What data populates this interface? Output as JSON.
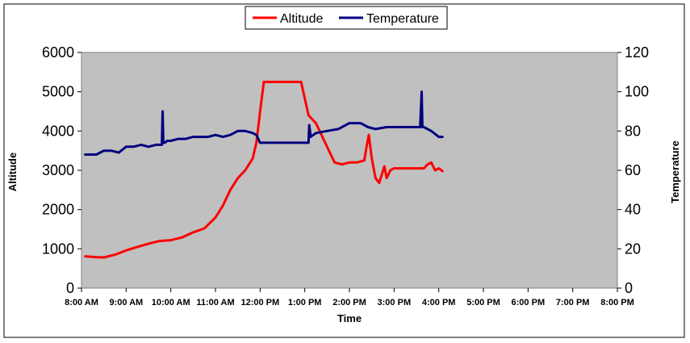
{
  "chart_data": {
    "type": "line",
    "title": "",
    "xlabel": "Time",
    "ylabel": "Altitude",
    "y2label": "Temperature",
    "xlim": [
      "8:00 AM",
      "8:00 PM"
    ],
    "ylim": [
      0,
      6000
    ],
    "y2lim": [
      0,
      120
    ],
    "x_ticks": [
      "8:00 AM",
      "9:00 AM",
      "10:00 AM",
      "11:00 AM",
      "12:00 PM",
      "1:00 PM",
      "2:00 PM",
      "3:00 PM",
      "4:00 PM",
      "5:00 PM",
      "6:00 PM",
      "7:00 PM",
      "8:00 PM"
    ],
    "y_ticks": [
      0,
      1000,
      2000,
      3000,
      4000,
      5000,
      6000
    ],
    "y2_ticks": [
      0,
      20,
      40,
      60,
      80,
      100,
      120
    ],
    "grid": false,
    "plot_background": "#c0c0c0",
    "legend_position": "top-center",
    "series": [
      {
        "name": "Altitude",
        "axis": "left",
        "color": "#ff0000",
        "x": [
          "8:05 AM",
          "8:20 AM",
          "8:30 AM",
          "8:45 AM",
          "9:00 AM",
          "9:15 AM",
          "9:30 AM",
          "9:45 AM",
          "10:00 AM",
          "10:15 AM",
          "10:30 AM",
          "10:45 AM",
          "11:00 AM",
          "11:10 AM",
          "11:20 AM",
          "11:30 AM",
          "11:40 AM",
          "11:50 AM",
          "11:55 AM",
          "12:00 PM",
          "12:05 PM",
          "12:30 PM",
          "12:55 PM",
          "1:05 PM",
          "1:15 PM",
          "1:25 PM",
          "1:35 PM",
          "1:40 PM",
          "1:50 PM",
          "2:00 PM",
          "2:10 PM",
          "2:20 PM",
          "2:23 PM",
          "2:26 PM",
          "2:30 PM",
          "2:35 PM",
          "2:40 PM",
          "2:47 PM",
          "2:50 PM",
          "2:55 PM",
          "3:00 PM",
          "3:10 PM",
          "3:20 PM",
          "3:30 PM",
          "3:40 PM",
          "3:45 PM",
          "3:50 PM",
          "3:55 PM",
          "4:00 PM",
          "4:05 PM"
        ],
        "y": [
          810,
          790,
          780,
          850,
          960,
          1050,
          1130,
          1200,
          1220,
          1290,
          1420,
          1520,
          1800,
          2100,
          2500,
          2800,
          3000,
          3300,
          3700,
          4500,
          5250,
          5250,
          5250,
          4400,
          4200,
          3800,
          3400,
          3200,
          3150,
          3200,
          3200,
          3250,
          3600,
          3900,
          3300,
          2800,
          2680,
          3100,
          2800,
          3000,
          3050,
          3050,
          3050,
          3050,
          3050,
          3150,
          3200,
          3000,
          3050,
          2980
        ]
      },
      {
        "name": "Temperature",
        "axis": "right",
        "color": "#00007f",
        "x": [
          "8:05 AM",
          "8:20 AM",
          "8:30 AM",
          "8:40 AM",
          "8:50 AM",
          "9:00 AM",
          "9:10 AM",
          "9:20 AM",
          "9:30 AM",
          "9:40 AM",
          "9:48 AM",
          "9:49 AM",
          "9:50 AM",
          "9:52 AM",
          "9:55 AM",
          "10:00 AM",
          "10:10 AM",
          "10:20 AM",
          "10:30 AM",
          "10:40 AM",
          "10:50 AM",
          "11:00 AM",
          "11:10 AM",
          "11:20 AM",
          "11:30 AM",
          "11:40 AM",
          "11:50 AM",
          "11:55 AM",
          "12:00 PM",
          "12:10 PM",
          "12:40 PM",
          "1:05 PM",
          "1:06 PM",
          "1:08 PM",
          "1:15 PM",
          "1:30 PM",
          "1:45 PM",
          "2:00 PM",
          "2:15 PM",
          "2:25 PM",
          "2:35 PM",
          "2:50 PM",
          "3:05 PM",
          "3:20 PM",
          "3:35 PM",
          "3:37 PM",
          "3:38 PM",
          "3:40 PM",
          "3:50 PM",
          "4:00 PM",
          "4:05 PM"
        ],
        "y": [
          68,
          68,
          70,
          70,
          69,
          72,
          72,
          73,
          72,
          73,
          73,
          90,
          74,
          74,
          75,
          75,
          76,
          76,
          77,
          77,
          77,
          78,
          77,
          78,
          80,
          80,
          79,
          78,
          74,
          74,
          74,
          74,
          83,
          77,
          79,
          80,
          81,
          84,
          84,
          82,
          81,
          82,
          82,
          82,
          82,
          100,
          82,
          82,
          80,
          77,
          77
        ]
      }
    ]
  }
}
